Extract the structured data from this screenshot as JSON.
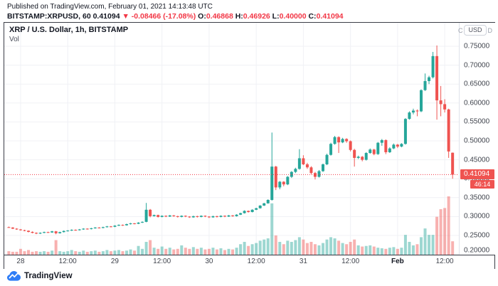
{
  "header": {
    "published": "Published on TradingView.com, February 01, 2021 14:13:48 UTC",
    "symbol_segments": [
      {
        "text": "BITSTAMP:XRPUSD, 60  ",
        "color": "dark"
      },
      {
        "text": "0.41094 ",
        "color": "dark"
      },
      {
        "text": "▼ -0.08466 (-17.08%)  ",
        "color": "red"
      },
      {
        "text": "O:",
        "color": "dark"
      },
      {
        "text": "0.46868 ",
        "color": "red"
      },
      {
        "text": "H:",
        "color": "dark"
      },
      {
        "text": "0.46926 ",
        "color": "red"
      },
      {
        "text": "L:",
        "color": "dark"
      },
      {
        "text": "0.40000 ",
        "color": "red"
      },
      {
        "text": "C:",
        "color": "dark"
      },
      {
        "text": "0.41094",
        "color": "red"
      }
    ]
  },
  "legend": {
    "title": "XRP / U.S. Dollar, 1h, BITSTAMP",
    "volume_label": "Vol"
  },
  "currency_toggle": {
    "left_partial": "C",
    "label": "USD",
    "right_partial": "D"
  },
  "price_axis": {
    "last_price": "0.41094",
    "countdown": "46:14"
  },
  "footer": {
    "brand": "TradingView"
  },
  "colors": {
    "up": "#26a69a",
    "down": "#ef5350",
    "vol_up": "rgba(38,166,154,0.45)",
    "vol_down": "rgba(239,83,80,0.45)",
    "accent_red": "#f23645",
    "label_bg": "#ef5350",
    "grid": "#f0f1f5",
    "text_dark": "#131722"
  },
  "chart_data": {
    "type": "candlestick",
    "title": "XRP / U.S. Dollar, 1h, BITSTAMP",
    "symbol": "BITSTAMP:XRPUSD",
    "interval": "1h",
    "legend_position": "top-left",
    "grid": true,
    "last_price": 0.41094,
    "last_bar_countdown": "46:14",
    "y_axis": {
      "range": [
        0.197,
        0.812
      ],
      "ticks": [
        {
          "label": "0.75000",
          "value": 0.75
        },
        {
          "label": "0.70000",
          "value": 0.7
        },
        {
          "label": "0.65000",
          "value": 0.65
        },
        {
          "label": "0.60000",
          "value": 0.6
        },
        {
          "label": "0.55000",
          "value": 0.55
        },
        {
          "label": "0.50000",
          "value": 0.5
        },
        {
          "label": "0.45000",
          "value": 0.45
        },
        {
          "label": "0.40000",
          "value": 0.4
        },
        {
          "label": "0.35000",
          "value": 0.35
        },
        {
          "label": "0.30000",
          "value": 0.3
        },
        {
          "label": "0.25000",
          "value": 0.25
        },
        {
          "label": "0.20000",
          "value": 0.2
        }
      ]
    },
    "x_ticks": [
      {
        "label": "28",
        "index": 3,
        "bold": false
      },
      {
        "label": "12:00",
        "index": 15,
        "bold": false
      },
      {
        "label": "29",
        "index": 27,
        "bold": false
      },
      {
        "label": "12:00",
        "index": 39,
        "bold": false
      },
      {
        "label": "30",
        "index": 51,
        "bold": false
      },
      {
        "label": "12:00",
        "index": 63,
        "bold": false
      },
      {
        "label": "31",
        "index": 75,
        "bold": false
      },
      {
        "label": "12:00",
        "index": 87,
        "bold": false
      },
      {
        "label": "Feb",
        "index": 99,
        "bold": true
      },
      {
        "label": "12:00",
        "index": 111,
        "bold": false
      }
    ],
    "series_note": "hourly bars Jan 27 21:00 - Feb 1 14:00 UTC, values estimated from chart; volume is relative to tallest bar (no volume scale shown)",
    "ohlc": [
      [
        0.272,
        0.2735,
        0.2705,
        0.271
      ],
      [
        0.271,
        0.272,
        0.267,
        0.268
      ],
      [
        0.268,
        0.2692,
        0.265,
        0.266
      ],
      [
        0.266,
        0.2672,
        0.2628,
        0.264
      ],
      [
        0.264,
        0.2652,
        0.2612,
        0.2625
      ],
      [
        0.2625,
        0.2635,
        0.2582,
        0.2595
      ],
      [
        0.2595,
        0.2608,
        0.2558,
        0.257
      ],
      [
        0.257,
        0.2582,
        0.2535,
        0.255
      ],
      [
        0.255,
        0.2582,
        0.254,
        0.257
      ],
      [
        0.257,
        0.2602,
        0.256,
        0.259
      ],
      [
        0.259,
        0.26,
        0.2565,
        0.258
      ],
      [
        0.258,
        0.2622,
        0.257,
        0.261
      ],
      [
        0.261,
        0.262,
        0.2532,
        0.256
      ],
      [
        0.256,
        0.26,
        0.255,
        0.259
      ],
      [
        0.259,
        0.2632,
        0.258,
        0.262
      ],
      [
        0.262,
        0.2642,
        0.2605,
        0.263
      ],
      [
        0.263,
        0.2662,
        0.262,
        0.265
      ],
      [
        0.265,
        0.266,
        0.2625,
        0.264
      ],
      [
        0.264,
        0.2672,
        0.263,
        0.266
      ],
      [
        0.266,
        0.2692,
        0.265,
        0.268
      ],
      [
        0.268,
        0.269,
        0.2655,
        0.267
      ],
      [
        0.267,
        0.2702,
        0.266,
        0.269
      ],
      [
        0.269,
        0.2722,
        0.268,
        0.271
      ],
      [
        0.271,
        0.272,
        0.2685,
        0.27
      ],
      [
        0.27,
        0.2732,
        0.269,
        0.272
      ],
      [
        0.272,
        0.2752,
        0.271,
        0.274
      ],
      [
        0.274,
        0.275,
        0.2715,
        0.273
      ],
      [
        0.273,
        0.2772,
        0.272,
        0.276
      ],
      [
        0.276,
        0.2792,
        0.275,
        0.278
      ],
      [
        0.278,
        0.279,
        0.2755,
        0.277
      ],
      [
        0.277,
        0.2812,
        0.276,
        0.28
      ],
      [
        0.28,
        0.2832,
        0.279,
        0.282
      ],
      [
        0.282,
        0.283,
        0.2795,
        0.281
      ],
      [
        0.281,
        0.2852,
        0.28,
        0.284
      ],
      [
        0.284,
        0.2872,
        0.283,
        0.286
      ],
      [
        0.286,
        0.336,
        0.285,
        0.318
      ],
      [
        0.318,
        0.32,
        0.298,
        0.301
      ],
      [
        0.301,
        0.3052,
        0.3,
        0.304
      ],
      [
        0.304,
        0.305,
        0.2975,
        0.299
      ],
      [
        0.299,
        0.3032,
        0.298,
        0.302
      ],
      [
        0.302,
        0.303,
        0.2985,
        0.3
      ],
      [
        0.3,
        0.3042,
        0.299,
        0.303
      ],
      [
        0.303,
        0.304,
        0.2995,
        0.301
      ],
      [
        0.301,
        0.302,
        0.2975,
        0.299
      ],
      [
        0.299,
        0.3032,
        0.298,
        0.302
      ],
      [
        0.302,
        0.303,
        0.2985,
        0.3
      ],
      [
        0.3,
        0.301,
        0.2965,
        0.298
      ],
      [
        0.298,
        0.3022,
        0.297,
        0.301
      ],
      [
        0.301,
        0.302,
        0.2975,
        0.299
      ],
      [
        0.299,
        0.3032,
        0.298,
        0.302
      ],
      [
        0.302,
        0.303,
        0.2985,
        0.3
      ],
      [
        0.3,
        0.301,
        0.2962,
        0.298
      ],
      [
        0.298,
        0.3022,
        0.297,
        0.301
      ],
      [
        0.301,
        0.302,
        0.2975,
        0.299
      ],
      [
        0.299,
        0.3032,
        0.298,
        0.302
      ],
      [
        0.302,
        0.303,
        0.2985,
        0.3
      ],
      [
        0.3,
        0.3042,
        0.299,
        0.303
      ],
      [
        0.303,
        0.304,
        0.2995,
        0.301
      ],
      [
        0.301,
        0.3062,
        0.3,
        0.305
      ],
      [
        0.305,
        0.3102,
        0.304,
        0.309
      ],
      [
        0.309,
        0.3165,
        0.308,
        0.315
      ],
      [
        0.315,
        0.316,
        0.3105,
        0.312
      ],
      [
        0.312,
        0.3192,
        0.311,
        0.318
      ],
      [
        0.318,
        0.3232,
        0.317,
        0.322
      ],
      [
        0.322,
        0.3302,
        0.321,
        0.329
      ],
      [
        0.329,
        0.3362,
        0.328,
        0.335
      ],
      [
        0.335,
        0.3455,
        0.334,
        0.344
      ],
      [
        0.344,
        0.522,
        0.342,
        0.432
      ],
      [
        0.432,
        0.434,
        0.37,
        0.377
      ],
      [
        0.377,
        0.394,
        0.372,
        0.392
      ],
      [
        0.392,
        0.3935,
        0.38,
        0.385
      ],
      [
        0.385,
        0.407,
        0.383,
        0.405
      ],
      [
        0.405,
        0.42,
        0.402,
        0.418
      ],
      [
        0.418,
        0.429,
        0.415,
        0.426
      ],
      [
        0.426,
        0.478,
        0.424,
        0.454
      ],
      [
        0.454,
        0.462,
        0.436,
        0.438
      ],
      [
        0.438,
        0.442,
        0.426,
        0.43
      ],
      [
        0.43,
        0.433,
        0.412,
        0.415
      ],
      [
        0.415,
        0.418,
        0.398,
        0.405
      ],
      [
        0.405,
        0.423,
        0.403,
        0.42
      ],
      [
        0.42,
        0.44,
        0.418,
        0.438
      ],
      [
        0.438,
        0.466,
        0.436,
        0.463
      ],
      [
        0.463,
        0.495,
        0.461,
        0.492
      ],
      [
        0.492,
        0.513,
        0.49,
        0.51
      ],
      [
        0.51,
        0.512,
        0.468,
        0.496
      ],
      [
        0.496,
        0.508,
        0.494,
        0.505
      ],
      [
        0.505,
        0.507,
        0.495,
        0.499
      ],
      [
        0.499,
        0.501,
        0.472,
        0.476
      ],
      [
        0.476,
        0.479,
        0.432,
        0.455
      ],
      [
        0.455,
        0.461,
        0.452,
        0.458
      ],
      [
        0.458,
        0.46,
        0.446,
        0.45
      ],
      [
        0.45,
        0.47,
        0.448,
        0.468
      ],
      [
        0.468,
        0.48,
        0.466,
        0.477
      ],
      [
        0.477,
        0.479,
        0.462,
        0.465
      ],
      [
        0.465,
        0.497,
        0.463,
        0.495
      ],
      [
        0.495,
        0.505,
        0.487,
        0.502
      ],
      [
        0.502,
        0.504,
        0.465,
        0.47
      ],
      [
        0.47,
        0.483,
        0.468,
        0.48
      ],
      [
        0.48,
        0.493,
        0.478,
        0.49
      ],
      [
        0.49,
        0.492,
        0.481,
        0.485
      ],
      [
        0.485,
        0.494,
        0.483,
        0.492
      ],
      [
        0.492,
        0.56,
        0.49,
        0.558
      ],
      [
        0.558,
        0.578,
        0.556,
        0.575
      ],
      [
        0.575,
        0.585,
        0.57,
        0.58
      ],
      [
        0.58,
        0.583,
        0.565,
        0.578
      ],
      [
        0.578,
        0.636,
        0.576,
        0.634
      ],
      [
        0.634,
        0.678,
        0.632,
        0.658
      ],
      [
        0.658,
        0.672,
        0.65,
        0.668
      ],
      [
        0.668,
        0.735,
        0.665,
        0.724
      ],
      [
        0.724,
        0.752,
        0.556,
        0.607
      ],
      [
        0.607,
        0.645,
        0.565,
        0.597
      ],
      [
        0.597,
        0.61,
        0.575,
        0.583
      ],
      [
        0.583,
        0.585,
        0.455,
        0.472
      ],
      [
        0.46868,
        0.46926,
        0.4,
        0.41094
      ]
    ],
    "volume_rel": [
      0.06,
      0.05,
      0.05,
      0.1,
      0.06,
      0.08,
      0.05,
      0.06,
      0.05,
      0.06,
      0.05,
      0.07,
      0.25,
      0.06,
      0.05,
      0.06,
      0.08,
      0.06,
      0.05,
      0.07,
      0.05,
      0.06,
      0.07,
      0.05,
      0.06,
      0.08,
      0.06,
      0.07,
      0.08,
      0.06,
      0.07,
      0.09,
      0.07,
      0.15,
      0.1,
      0.22,
      0.25,
      0.12,
      0.1,
      0.14,
      0.1,
      0.12,
      0.09,
      0.1,
      0.16,
      0.12,
      0.1,
      0.13,
      0.1,
      0.12,
      0.09,
      0.1,
      0.12,
      0.09,
      0.11,
      0.08,
      0.1,
      0.09,
      0.12,
      0.18,
      0.22,
      0.15,
      0.18,
      0.2,
      0.24,
      0.26,
      0.28,
      0.88,
      0.33,
      0.22,
      0.18,
      0.24,
      0.22,
      0.25,
      0.3,
      0.26,
      0.2,
      0.22,
      0.18,
      0.16,
      0.2,
      0.26,
      0.3,
      0.28,
      0.24,
      0.2,
      0.18,
      0.22,
      0.26,
      0.16,
      0.14,
      0.15,
      0.16,
      0.14,
      0.12,
      0.11,
      0.1,
      0.12,
      0.13,
      0.1,
      0.12,
      0.34,
      0.22,
      0.16,
      0.18,
      0.3,
      0.45,
      0.34,
      0.34,
      0.65,
      0.78,
      0.8,
      1.0,
      0.23
    ]
  }
}
